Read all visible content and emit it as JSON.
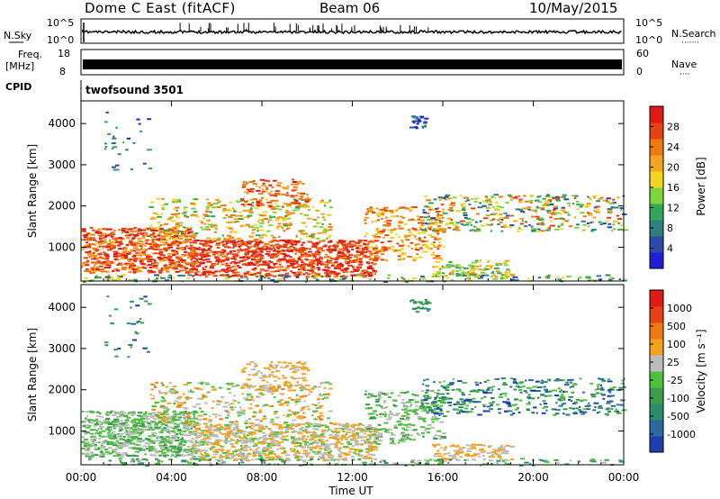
{
  "header": {
    "station": "Dome C East (fitACF)",
    "beam": "Beam 06",
    "date": "10/May/2015"
  },
  "sky_panel": {
    "left_label": "N.Sky",
    "left_ticks": [
      "10^5",
      "10^0"
    ],
    "right_label": "N.Search",
    "right_ticks": [
      "10^5",
      "10^0"
    ],
    "right_dots": "·······"
  },
  "freq_panel": {
    "left_label_1": "Freq.",
    "left_label_2": "[MHz]",
    "left_ticks": [
      "18",
      "8"
    ],
    "right_label": "Nave",
    "right_ticks": [
      "60",
      "0"
    ],
    "right_dots": "····"
  },
  "cpid": {
    "label": "CPID",
    "value": "twofsound 3501"
  },
  "chart_data": [
    {
      "type": "heatmap",
      "name": "power",
      "ylabel": "Slant Range [km]",
      "ylim": [
        180,
        4550
      ],
      "yticks": [
        "1000",
        "2000",
        "3000",
        "4000"
      ],
      "xlim_hours": [
        0,
        24
      ],
      "xticks": [
        "00:00",
        "04:00",
        "08:00",
        "12:00",
        "16:00",
        "20:00",
        "00:00"
      ],
      "xlabel": "Time UT",
      "colorbar": {
        "label": "Power [dB]",
        "ticks": [
          "4",
          "8",
          "12",
          "16",
          "20",
          "24",
          "28"
        ],
        "colors": [
          "#1f1fd8",
          "#2a49a8",
          "#2e7f80",
          "#33a65a",
          "#7ed63a",
          "#f5d61e",
          "#f5a31e",
          "#f07a12",
          "#e64110",
          "#e01a14"
        ]
      }
    },
    {
      "type": "heatmap",
      "name": "velocity",
      "ylabel": "Slant Range [km]",
      "ylim": [
        180,
        4550
      ],
      "yticks": [
        "1000",
        "2000",
        "3000",
        "4000"
      ],
      "xlim_hours": [
        0,
        24
      ],
      "xticks": [
        "00:00",
        "04:00",
        "08:00",
        "12:00",
        "16:00",
        "20:00",
        "00:00"
      ],
      "xlabel": "Time UT",
      "colorbar": {
        "label": "Velocity [m s⁻¹]",
        "ticks": [
          "1000",
          "500",
          "100",
          "25",
          "-25",
          "-100",
          "-500",
          "-1000"
        ],
        "colors": [
          "#1f3fb0",
          "#2b6aa0",
          "#2e8a6c",
          "#3c9c4c",
          "#4cc23c",
          "#bcbcbc",
          "#f5a31e",
          "#f07a12",
          "#e64110",
          "#e01a14"
        ]
      }
    }
  ]
}
